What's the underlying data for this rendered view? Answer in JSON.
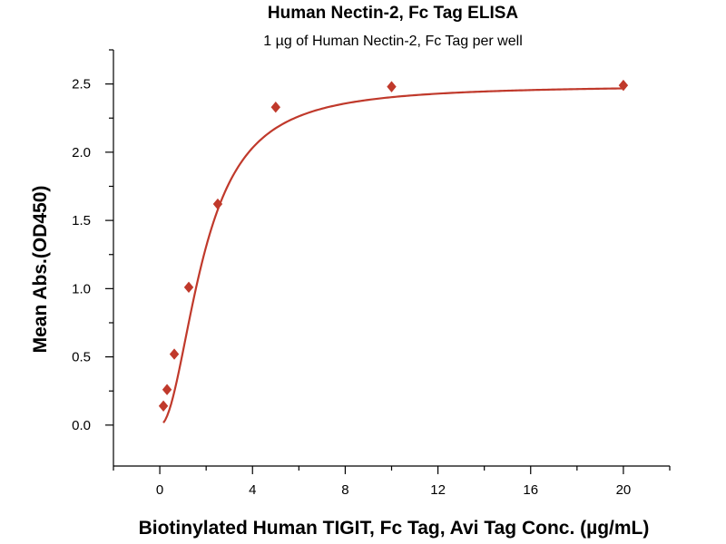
{
  "chart_data": {
    "type": "scatter",
    "title": "Human Nectin-2, Fc Tag ELISA",
    "subtitle": "1 µg of Human Nectin-2, Fc Tag per well",
    "xlabel": "Biotinylated Human TIGIT, Fc Tag, Avi Tag Conc. (µg/mL)",
    "ylabel": "Mean Abs.(OD450)",
    "xlim": [
      -2,
      22
    ],
    "ylim": [
      -0.3,
      2.75
    ],
    "x_ticks": [
      0,
      4,
      8,
      12,
      16,
      20
    ],
    "x_tick_labels": [
      "0",
      "4",
      "8",
      "12",
      "16",
      "20"
    ],
    "x_minor_ticks": [
      -2,
      2,
      6,
      10,
      14,
      18,
      22
    ],
    "y_ticks": [
      0.0,
      0.5,
      1.0,
      1.5,
      2.0,
      2.5
    ],
    "y_tick_labels": [
      "0.0",
      "0.5",
      "1.0",
      "1.5",
      "2.0",
      "2.5"
    ],
    "y_minor_ticks": [
      0.25,
      0.75,
      1.25,
      1.75,
      2.25,
      2.75
    ],
    "grid": false,
    "legend": "none",
    "series": [
      {
        "marker": "diamond",
        "color": "#C0392B",
        "points": [
          {
            "x": 0.156,
            "y": 0.14
          },
          {
            "x": 0.3125,
            "y": 0.26
          },
          {
            "x": 0.625,
            "y": 0.52
          },
          {
            "x": 1.25,
            "y": 1.01
          },
          {
            "x": 2.5,
            "y": 1.62
          },
          {
            "x": 5,
            "y": 2.33
          },
          {
            "x": 10,
            "y": 2.48
          },
          {
            "x": 20,
            "y": 2.49
          }
        ]
      }
    ],
    "fit": {
      "type": "4PL",
      "color": "#C0392B",
      "bottom": 0.0,
      "top": 2.49,
      "ec50": 1.9,
      "hill": 2.0,
      "x_range": [
        0.156,
        20
      ]
    }
  }
}
